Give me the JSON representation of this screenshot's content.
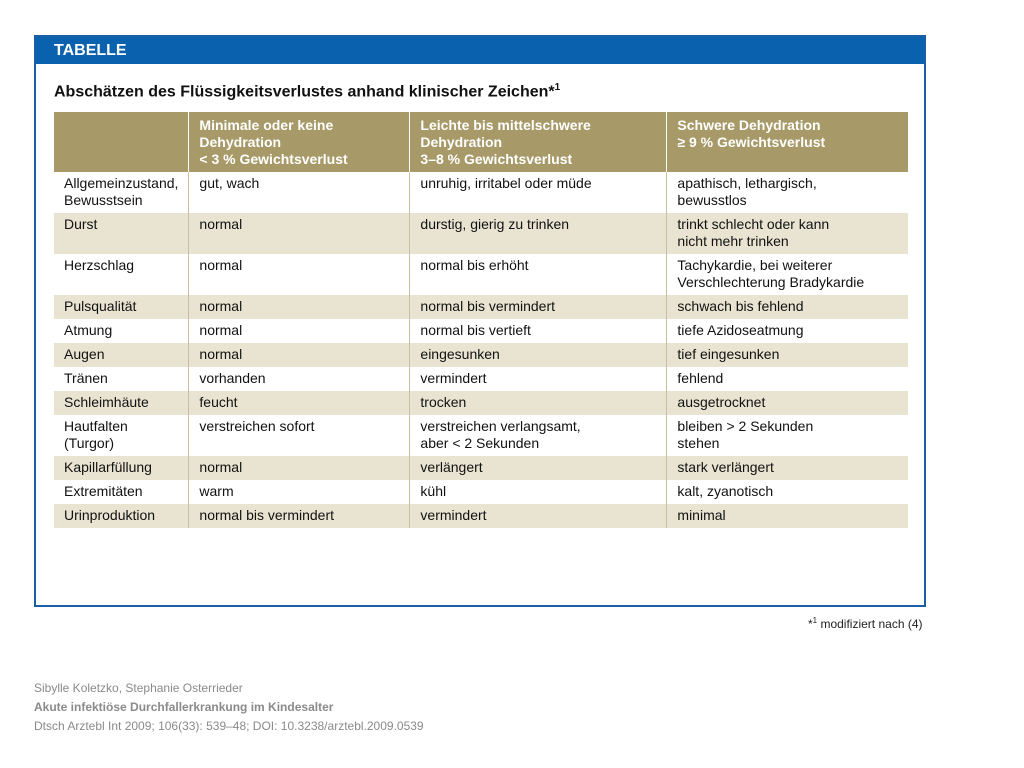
{
  "banner": "TABELLE",
  "title": "Abschätzen des Flüssigkeitsverlustes anhand klinischer Zeichen*",
  "title_sup": "1",
  "headers": [
    "",
    "Minimale oder keine Dehydration\n< 3 % Gewichtsverlust",
    "Leichte bis mittelschwere Dehydration\n3–8 % Gewichtsverlust",
    "Schwere Dehydration\n≥ 9 % Gewichtsverlust"
  ],
  "rows": [
    [
      "Allgemeinzustand,\nBewusstsein",
      "gut, wach",
      "unruhig, irritabel oder müde",
      "apathisch, lethargisch,\nbewusstlos"
    ],
    [
      "Durst",
      "normal",
      "durstig, gierig zu trinken",
      "trinkt schlecht oder kann\nnicht mehr trinken"
    ],
    [
      "Herzschlag",
      "normal",
      "normal bis erhöht",
      "Tachykardie, bei weiterer\nVerschlechterung Bradykardie"
    ],
    [
      "Pulsqualität",
      "normal",
      "normal bis vermindert",
      "schwach bis fehlend"
    ],
    [
      "Atmung",
      "normal",
      "normal bis vertieft",
      "tiefe Azidoseatmung"
    ],
    [
      "Augen",
      "normal",
      "eingesunken",
      "tief eingesunken"
    ],
    [
      "Tränen",
      "vorhanden",
      "vermindert",
      "fehlend"
    ],
    [
      "Schleimhäute",
      "feucht",
      "trocken",
      "ausgetrocknet"
    ],
    [
      "Hautfalten\n(Turgor)",
      "verstreichen sofort",
      "verstreichen verlangsamt,\naber < 2 Sekunden",
      "bleiben > 2 Sekunden\nstehen"
    ],
    [
      "Kapillarfüllung",
      "normal",
      "verlängert",
      "stark verlängert"
    ],
    [
      "Extremitäten",
      "warm",
      "kühl",
      "kalt, zyanotisch"
    ],
    [
      "Urinproduktion",
      "normal bis vermindert",
      "vermindert",
      "minimal"
    ]
  ],
  "footnote_mark": "*",
  "footnote_sup": "1",
  "footnote": " modifiziert nach (4)",
  "citation": {
    "authors": "Sibylle Koletzko, Stephanie Osterrieder",
    "article": "Akute infektiöse Durchfallerkrankung im Kindesalter",
    "reference": "Dtsch Arztebl Int 2009; 106(33): 539–48; DOI: 10.3238/arztebl.2009.0539"
  },
  "colors": {
    "banner": "#0a62ae",
    "header": "#a79a68",
    "stripe": "#e9e4d2"
  }
}
